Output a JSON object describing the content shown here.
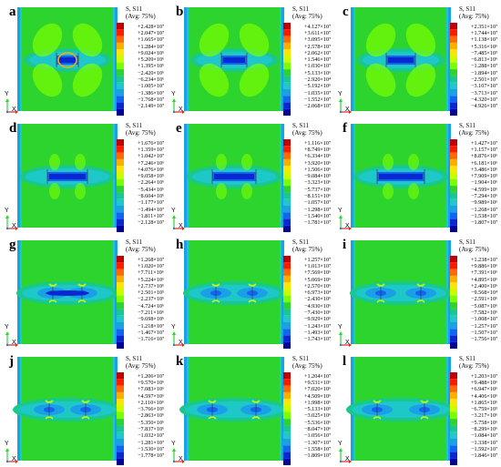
{
  "legend_title": "S, S11",
  "legend_subtitle": "(Avg: 75%)",
  "axis_labels": {
    "x": "X",
    "y": "Y"
  },
  "colors": [
    "#c00000",
    "#ff1a00",
    "#ff6a00",
    "#ffae00",
    "#ffe600",
    "#c8ff00",
    "#7aff00",
    "#2dd42d",
    "#19c88c",
    "#1ec8c8",
    "#1aa0e6",
    "#1464f0",
    "#0a28d2",
    "#00009a"
  ],
  "panels": [
    {
      "letter": "a",
      "values": [
        "+2.428×10⁷",
        "+2.047×10⁷",
        "+1.665×10⁷",
        "+1.284×10⁷",
        "+9.024×10⁶",
        "+5.209×10⁶",
        "+1.395×10⁶",
        "−2.420×10⁶",
        "−6.234×10⁶",
        "−1.005×10⁷",
        "−1.386×10⁷",
        "−1.768×10⁷",
        "−2.149×10⁷"
      ]
    },
    {
      "letter": "b",
      "values": [
        "+4.127×10⁷",
        "+3.611×10⁷",
        "+3.095×10⁷",
        "+2.578×10⁷",
        "+2.062×10⁷",
        "+1.546×10⁷",
        "+1.030×10⁷",
        "+5.133×10⁶",
        "−2.920×10⁴",
        "−5.192×10⁶",
        "−1.035×10⁷",
        "−1.552×10⁷",
        "−2.068×10⁷"
      ]
    },
    {
      "letter": "c",
      "values": [
        "+2.351×10⁷",
        "+1.744×10⁷",
        "+1.138×10⁷",
        "+5.316×10⁶",
        "−7.485×10⁵",
        "−6.813×10⁶",
        "−1.288×10⁷",
        "−1.894×10⁷",
        "−2.501×10⁷",
        "−3.107×10⁷",
        "−3.713×10⁷",
        "−4.320×10⁷",
        "−4.926×10⁷"
      ]
    },
    {
      "letter": "d",
      "values": [
        "+1.676×10⁷",
        "+1.359×10⁷",
        "+1.042×10⁷",
        "+7.246×10⁶",
        "+4.076×10⁶",
        "+9.058×10⁵",
        "−2.264×10⁶",
        "−5.434×10⁶",
        "−8.604×10⁶",
        "−1.177×10⁷",
        "−1.494×10⁷",
        "−1.811×10⁷",
        "−2.128×10⁷"
      ]
    },
    {
      "letter": "e",
      "values": [
        "+1.116×10⁷",
        "+8.749×10⁶",
        "+6.334×10⁶",
        "+3.920×10⁶",
        "+1.506×10⁶",
        "−9.084×10⁵",
        "−3.323×10⁶",
        "−5.737×10⁶",
        "−8.151×10⁶",
        "−1.057×10⁷",
        "−1.298×10⁷",
        "−1.540×10⁷",
        "−1.781×10⁷"
      ]
    },
    {
      "letter": "f",
      "values": [
        "+1.427×10⁷",
        "+1.157×10⁷",
        "+8.876×10⁶",
        "+6.181×10⁶",
        "+3.486×10⁶",
        "+7.909×10⁵",
        "−1.904×10⁶",
        "−4.599×10⁶",
        "−7.294×10⁶",
        "−9.989×10⁶",
        "−1.268×10⁷",
        "−1.538×10⁷",
        "−1.807×10⁷"
      ]
    },
    {
      "letter": "g",
      "values": [
        "+1.268×10⁷",
        "+1.020×10⁷",
        "+7.711×10⁶",
        "+5.224×10⁶",
        "+2.737×10⁶",
        "+2.501×10⁵",
        "−2.237×10⁶",
        "−4.724×10⁶",
        "−7.211×10⁶",
        "−9.698×10⁶",
        "−1.218×10⁷",
        "−1.467×10⁷",
        "−1.716×10⁷"
      ]
    },
    {
      "letter": "h",
      "values": [
        "+1.257×10⁷",
        "+1.013×10⁷",
        "+7.569×10⁶",
        "+5.069×10⁶",
        "+2.570×10⁶",
        "+6.973×10⁴",
        "−2.430×10⁶",
        "−4.930×10⁶",
        "−7.430×10⁶",
        "−9.929×10⁶",
        "−1.243×10⁷",
        "−1.493×10⁷",
        "−1.743×10⁷"
      ]
    },
    {
      "letter": "i",
      "values": [
        "+1.238×10⁷",
        "+9.886×10⁶",
        "+7.391×10⁶",
        "+4.895×10⁶",
        "+2.400×10⁶",
        "−9.568×10⁴",
        "−2.591×10⁶",
        "−5.087×10⁶",
        "−7.582×10⁶",
        "−1.008×10⁷",
        "−1.257×10⁷",
        "−1.507×10⁷",
        "−1.756×10⁷"
      ]
    },
    {
      "letter": "j",
      "values": [
        "+1.206×10⁷",
        "+9.570×10⁶",
        "+7.083×10⁶",
        "+4.597×10⁶",
        "+2.110×10⁶",
        "−3.766×10⁵",
        "−2.863×10⁶",
        "−5.350×10⁶",
        "−7.837×10⁶",
        "−1.032×10⁷",
        "−1.281×10⁷",
        "−1.530×10⁷",
        "−1.778×10⁷"
      ]
    },
    {
      "letter": "k",
      "values": [
        "+1.204×10⁷",
        "+9.531×10⁶",
        "+7.020×10⁶",
        "+4.509×10⁶",
        "+1.998×10⁶",
        "−5.133×10⁵",
        "−3.025×10⁶",
        "−5.536×10⁶",
        "−8.047×10⁶",
        "−1.056×10⁷",
        "−1.307×10⁷",
        "−1.558×10⁷",
        "−1.809×10⁷"
      ]
    },
    {
      "letter": "l",
      "values": [
        "+1.203×10⁷",
        "+9.488×10⁶",
        "+6.947×10⁶",
        "+4.406×10⁶",
        "+1.865×10⁶",
        "−6.759×10⁵",
        "−3.217×10⁶",
        "−5.758×10⁶",
        "−8.299×10⁶",
        "−1.084×10⁷",
        "−1.338×10⁷",
        "−1.592×10⁷",
        "−1.846×10⁷"
      ]
    }
  ]
}
